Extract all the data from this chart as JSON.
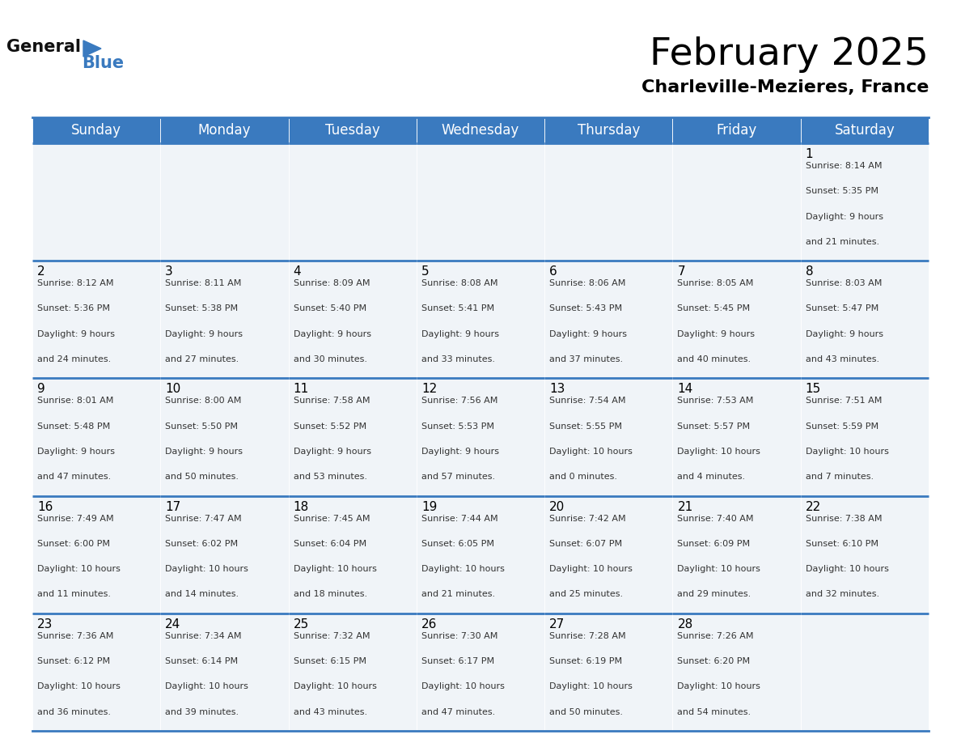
{
  "title": "February 2025",
  "subtitle": "Charleville-Mezieres, France",
  "header_color": "#3a7abf",
  "header_text_color": "#ffffff",
  "cell_bg": "#f0f4f8",
  "border_color": "#3a7abf",
  "text_color": "#333333",
  "day_headers": [
    "Sunday",
    "Monday",
    "Tuesday",
    "Wednesday",
    "Thursday",
    "Friday",
    "Saturday"
  ],
  "title_fontsize": 34,
  "subtitle_fontsize": 16,
  "header_fontsize": 12,
  "day_num_fontsize": 11,
  "cell_text_fontsize": 8,
  "calendar": [
    [
      null,
      null,
      null,
      null,
      null,
      null,
      {
        "day": 1,
        "sunrise": "8:14 AM",
        "sunset": "5:35 PM",
        "daylight": "9 hours\nand 21 minutes."
      }
    ],
    [
      {
        "day": 2,
        "sunrise": "8:12 AM",
        "sunset": "5:36 PM",
        "daylight": "9 hours\nand 24 minutes."
      },
      {
        "day": 3,
        "sunrise": "8:11 AM",
        "sunset": "5:38 PM",
        "daylight": "9 hours\nand 27 minutes."
      },
      {
        "day": 4,
        "sunrise": "8:09 AM",
        "sunset": "5:40 PM",
        "daylight": "9 hours\nand 30 minutes."
      },
      {
        "day": 5,
        "sunrise": "8:08 AM",
        "sunset": "5:41 PM",
        "daylight": "9 hours\nand 33 minutes."
      },
      {
        "day": 6,
        "sunrise": "8:06 AM",
        "sunset": "5:43 PM",
        "daylight": "9 hours\nand 37 minutes."
      },
      {
        "day": 7,
        "sunrise": "8:05 AM",
        "sunset": "5:45 PM",
        "daylight": "9 hours\nand 40 minutes."
      },
      {
        "day": 8,
        "sunrise": "8:03 AM",
        "sunset": "5:47 PM",
        "daylight": "9 hours\nand 43 minutes."
      }
    ],
    [
      {
        "day": 9,
        "sunrise": "8:01 AM",
        "sunset": "5:48 PM",
        "daylight": "9 hours\nand 47 minutes."
      },
      {
        "day": 10,
        "sunrise": "8:00 AM",
        "sunset": "5:50 PM",
        "daylight": "9 hours\nand 50 minutes."
      },
      {
        "day": 11,
        "sunrise": "7:58 AM",
        "sunset": "5:52 PM",
        "daylight": "9 hours\nand 53 minutes."
      },
      {
        "day": 12,
        "sunrise": "7:56 AM",
        "sunset": "5:53 PM",
        "daylight": "9 hours\nand 57 minutes."
      },
      {
        "day": 13,
        "sunrise": "7:54 AM",
        "sunset": "5:55 PM",
        "daylight": "10 hours\nand 0 minutes."
      },
      {
        "day": 14,
        "sunrise": "7:53 AM",
        "sunset": "5:57 PM",
        "daylight": "10 hours\nand 4 minutes."
      },
      {
        "day": 15,
        "sunrise": "7:51 AM",
        "sunset": "5:59 PM",
        "daylight": "10 hours\nand 7 minutes."
      }
    ],
    [
      {
        "day": 16,
        "sunrise": "7:49 AM",
        "sunset": "6:00 PM",
        "daylight": "10 hours\nand 11 minutes."
      },
      {
        "day": 17,
        "sunrise": "7:47 AM",
        "sunset": "6:02 PM",
        "daylight": "10 hours\nand 14 minutes."
      },
      {
        "day": 18,
        "sunrise": "7:45 AM",
        "sunset": "6:04 PM",
        "daylight": "10 hours\nand 18 minutes."
      },
      {
        "day": 19,
        "sunrise": "7:44 AM",
        "sunset": "6:05 PM",
        "daylight": "10 hours\nand 21 minutes."
      },
      {
        "day": 20,
        "sunrise": "7:42 AM",
        "sunset": "6:07 PM",
        "daylight": "10 hours\nand 25 minutes."
      },
      {
        "day": 21,
        "sunrise": "7:40 AM",
        "sunset": "6:09 PM",
        "daylight": "10 hours\nand 29 minutes."
      },
      {
        "day": 22,
        "sunrise": "7:38 AM",
        "sunset": "6:10 PM",
        "daylight": "10 hours\nand 32 minutes."
      }
    ],
    [
      {
        "day": 23,
        "sunrise": "7:36 AM",
        "sunset": "6:12 PM",
        "daylight": "10 hours\nand 36 minutes."
      },
      {
        "day": 24,
        "sunrise": "7:34 AM",
        "sunset": "6:14 PM",
        "daylight": "10 hours\nand 39 minutes."
      },
      {
        "day": 25,
        "sunrise": "7:32 AM",
        "sunset": "6:15 PM",
        "daylight": "10 hours\nand 43 minutes."
      },
      {
        "day": 26,
        "sunrise": "7:30 AM",
        "sunset": "6:17 PM",
        "daylight": "10 hours\nand 47 minutes."
      },
      {
        "day": 27,
        "sunrise": "7:28 AM",
        "sunset": "6:19 PM",
        "daylight": "10 hours\nand 50 minutes."
      },
      {
        "day": 28,
        "sunrise": "7:26 AM",
        "sunset": "6:20 PM",
        "daylight": "10 hours\nand 54 minutes."
      },
      null
    ]
  ]
}
